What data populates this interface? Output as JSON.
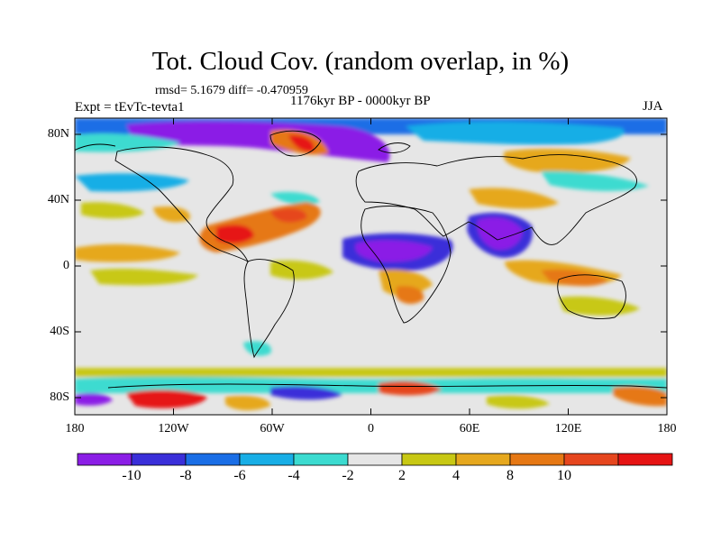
{
  "title": "Tot. Cloud Cov. (random overlap, in %)",
  "stats": "rmsd= 5.1679 diff= -0.470959",
  "expt": "Expt = tEvTc-tevta1",
  "period": "1176kyr BP - 0000kyr BP",
  "season": "JJA",
  "y_ticks": [
    "80N",
    "40N",
    "0",
    "40S",
    "80S"
  ],
  "x_ticks": [
    "180",
    "120W",
    "60W",
    "0",
    "60E",
    "120E",
    "180"
  ],
  "colorbar": {
    "colors": [
      "#8b1ee6",
      "#3a2fd9",
      "#1a6ee6",
      "#18aee6",
      "#3cdbd0",
      "#e6e6e6",
      "#c8c814",
      "#e6a81e",
      "#e67814",
      "#e6461e",
      "#e61414"
    ],
    "labels": [
      "-10",
      "-8",
      "-6",
      "-4",
      "-2",
      "2",
      "4",
      "8",
      "10"
    ]
  }
}
